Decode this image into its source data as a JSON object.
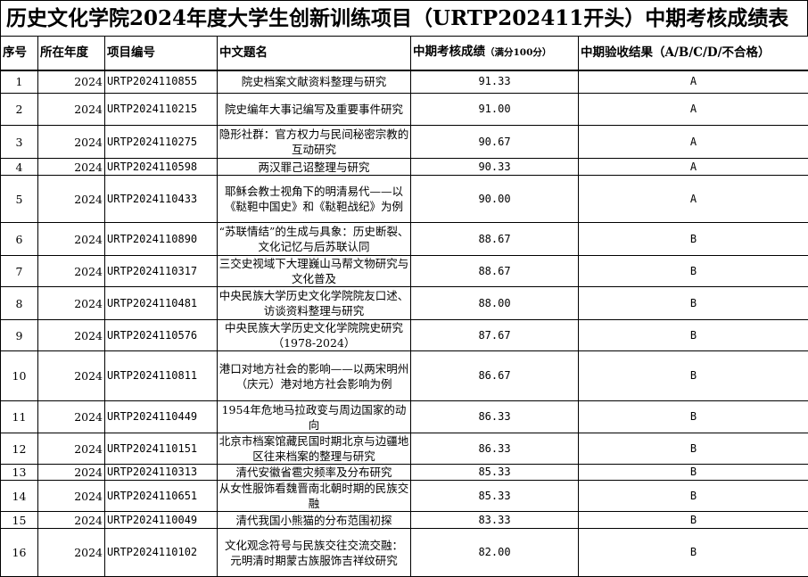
{
  "title": "历史文化学院2024年度大学生创新训练项目（URTP202411开头）中期考核成绩表",
  "headers": {
    "no": "序号",
    "year": "所在年度",
    "code": "项目编号",
    "name": "中文题名",
    "score": "中期考核成绩",
    "score_note": "（满分100分）",
    "result": "中期验收结果（A/B/C/D/不合格）"
  },
  "rows": [
    {
      "no": "1",
      "year": "2024",
      "code": "URTP2024110855",
      "name": "院史档案文献资料整理与研究",
      "score": "91.33",
      "result": "A"
    },
    {
      "no": "2",
      "year": "2024",
      "code": "URTP2024110215",
      "name": "院史编年大事记编写及重要事件研究",
      "score": "91.00",
      "result": "A"
    },
    {
      "no": "3",
      "year": "2024",
      "code": "URTP2024110275",
      "name": "隐形社群：官方权力与民间秘密宗教的互动研究",
      "score": "90.67",
      "result": "A"
    },
    {
      "no": "4",
      "year": "2024",
      "code": "URTP2024110598",
      "name": "两汉罪己诏整理与研究",
      "score": "90.33",
      "result": "A"
    },
    {
      "no": "5",
      "year": "2024",
      "code": "URTP2024110433",
      "name": "耶稣会教士视角下的明清易代——以《鞑靼中国史》和《鞑靼战纪》为例",
      "score": "90.00",
      "result": "A"
    },
    {
      "no": "6",
      "year": "2024",
      "code": "URTP2024110890",
      "name": "“苏联情结”的生成与具象：历史断裂、文化记忆与后苏联认同",
      "score": "88.67",
      "result": "B"
    },
    {
      "no": "7",
      "year": "2024",
      "code": "URTP2024110317",
      "name": "三交史视域下大理巍山马帮文物研究与文化普及",
      "score": "88.67",
      "result": "B"
    },
    {
      "no": "8",
      "year": "2024",
      "code": "URTP2024110481",
      "name": "中央民族大学历史文化学院院友口述、访谈资料整理与研究",
      "score": "88.00",
      "result": "B"
    },
    {
      "no": "9",
      "year": "2024",
      "code": "URTP2024110576",
      "name": "中央民族大学历史文化学院院史研究（1978-2024）",
      "score": "87.67",
      "result": "B"
    },
    {
      "no": "10",
      "year": "2024",
      "code": "URTP2024110811",
      "name": "港口对地方社会的影响——以两宋明州（庆元）港对地方社会影响为例",
      "score": "86.67",
      "result": "B"
    },
    {
      "no": "11",
      "year": "2024",
      "code": "URTP2024110449",
      "name": "1954年危地马拉政变与周边国家的动向",
      "score": "86.33",
      "result": "B"
    },
    {
      "no": "12",
      "year": "2024",
      "code": "URTP2024110151",
      "name": "北京市档案馆藏民国时期北京与边疆地区往来档案的整理与研究",
      "score": "86.33",
      "result": "B"
    },
    {
      "no": "13",
      "year": "2024",
      "code": "URTP2024110313",
      "name": "清代安徽省雹灾频率及分布研究",
      "score": "85.33",
      "result": "B"
    },
    {
      "no": "14",
      "year": "2024",
      "code": "URTP2024110651",
      "name": "从女性服饰看魏晋南北朝时期的民族交融",
      "score": "85.33",
      "result": "B"
    },
    {
      "no": "15",
      "year": "2024",
      "code": "URTP2024110049",
      "name": "清代我国小熊猫的分布范围初探",
      "score": "83.33",
      "result": "B"
    },
    {
      "no": "16",
      "year": "2024",
      "code": "URTP2024110102",
      "name": "文化观念符号与民族交往交流交融： 元明清时期蒙古族服饰吉祥纹研究",
      "score": "82.00",
      "result": "B"
    }
  ]
}
